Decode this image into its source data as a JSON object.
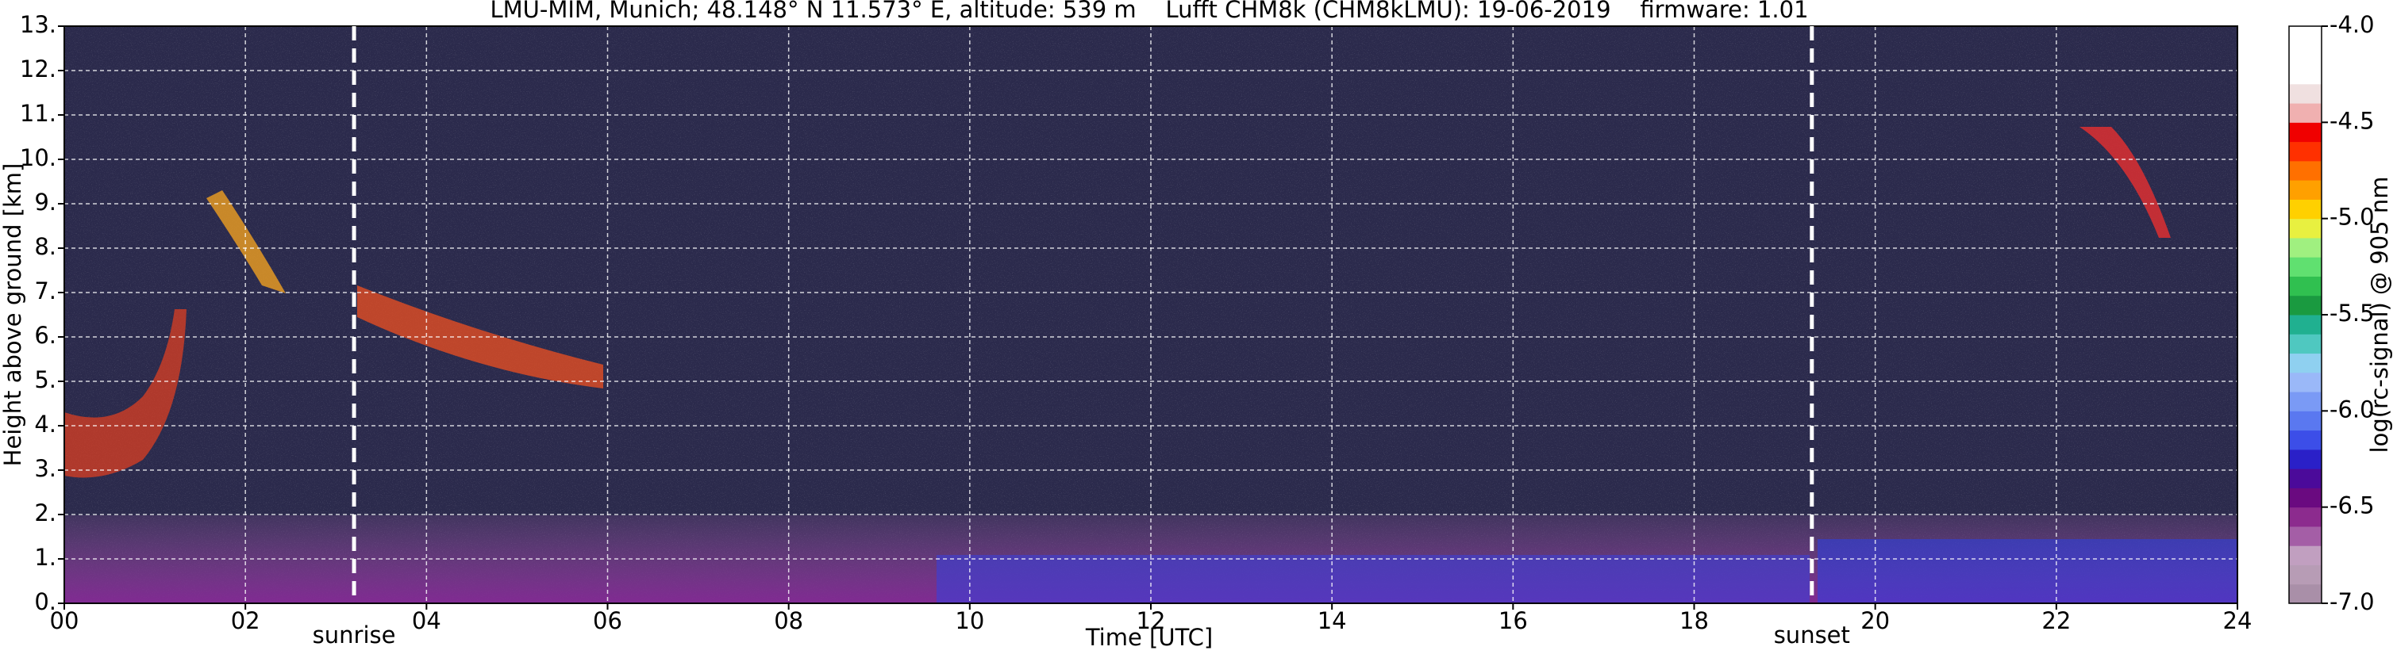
{
  "chart_data": {
    "type": "heatmap",
    "title": "LMU-MIM, Munich; 48.148° N 11.573° E, altitude: 539 m    Lufft CHM8k (CHM8kLMU): 19-06-2019    firmware: 1.01",
    "x_label": "Time [UTC]",
    "y_label": "Height above ground [km]",
    "xlim": [
      0,
      24
    ],
    "xticks": [
      {
        "value": 0,
        "label": "00"
      },
      {
        "value": 2,
        "label": "02"
      },
      {
        "value": 4,
        "label": "04"
      },
      {
        "value": 6,
        "label": "06"
      },
      {
        "value": 8,
        "label": "08"
      },
      10,
      12,
      14,
      16,
      18,
      20,
      22,
      24
    ],
    "ylim": [
      0,
      13
    ],
    "yticks": [
      {
        "value": 0,
        "label": "0."
      },
      {
        "value": 1,
        "label": "1."
      },
      {
        "value": 2,
        "label": "2."
      },
      {
        "value": 3,
        "label": "3."
      },
      {
        "value": 4,
        "label": "4."
      },
      {
        "value": 5,
        "label": "5."
      },
      {
        "value": 6,
        "label": "6."
      },
      {
        "value": 7,
        "label": "7."
      },
      {
        "value": 8,
        "label": "8."
      },
      {
        "value": 9,
        "label": "9."
      },
      {
        "value": 10,
        "label": "10."
      },
      {
        "value": 11,
        "label": "11."
      },
      {
        "value": 12,
        "label": "12."
      },
      {
        "value": 13,
        "label": "13."
      }
    ],
    "grid": true,
    "background": "#2b2a4c",
    "annotations": [
      {
        "text": "sunrise",
        "x": 3.2
      },
      {
        "text": "sunset",
        "x": 19.3
      }
    ],
    "colorbar": {
      "label": "log(rc-signal) @ 905 nm",
      "lim": [
        -7.0,
        -4.0
      ],
      "ticks": [
        {
          "value": -7.0,
          "label": "-7.0"
        },
        {
          "value": -6.5,
          "label": "-6.5"
        },
        {
          "value": -6.0,
          "label": "-6.0"
        },
        {
          "value": -5.5,
          "label": "-5.5"
        },
        {
          "value": -5.0,
          "label": "-5.0"
        },
        {
          "value": -4.5,
          "label": "-4.5"
        },
        {
          "value": -4.0,
          "label": "-4.0"
        }
      ],
      "colors": [
        "#a98fa8",
        "#b79cb5",
        "#c19fc0",
        "#a45ea6",
        "#8c2b8e",
        "#6a0a80",
        "#4b0a9a",
        "#2a20c8",
        "#3c4ee8",
        "#5a78f0",
        "#7a9af5",
        "#9ab8f8",
        "#8fd0f0",
        "#4fc8c0",
        "#20b090",
        "#1a9a40",
        "#30c050",
        "#60e070",
        "#a0f080",
        "#e8f040",
        "#ffd000",
        "#ffa000",
        "#ff7000",
        "#ff3000",
        "#f00000",
        "#f0b0b0",
        "#f0e0e0",
        "#ffffff",
        "#ffffff",
        "#ffffff"
      ]
    }
  }
}
